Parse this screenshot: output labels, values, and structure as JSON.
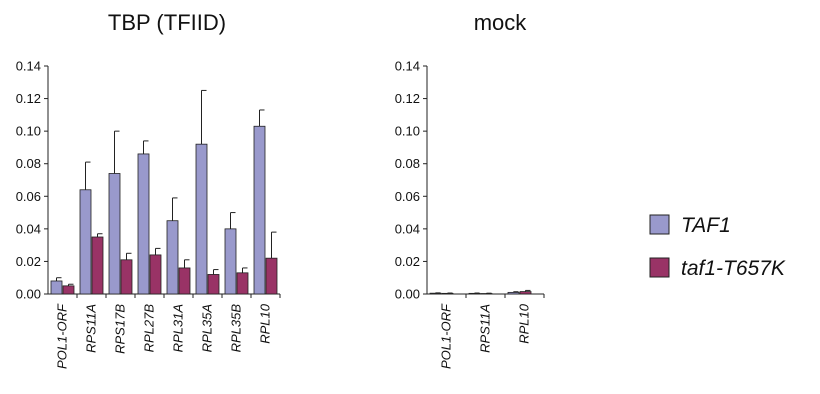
{
  "legend": {
    "items": [
      {
        "label": "TAF1",
        "color": "#9999CC"
      },
      {
        "label": "taf1-T657K",
        "color": "#993366"
      }
    ]
  },
  "chart_data": [
    {
      "type": "bar",
      "title": "TBP (TFIID)",
      "categories": [
        "POL1-ORF",
        "RPS11A",
        "RPS17B",
        "RPL27B",
        "RPL31A",
        "RPL35A",
        "RPL35B",
        "RPL10"
      ],
      "ylim": [
        0,
        0.14
      ],
      "yticks": [
        "0.00",
        "0.02",
        "0.04",
        "0.06",
        "0.08",
        "0.10",
        "0.12",
        "0.14"
      ],
      "series": [
        {
          "name": "TAF1",
          "color": "#9999CC",
          "values": [
            0.008,
            0.064,
            0.074,
            0.086,
            0.045,
            0.092,
            0.04,
            0.103
          ],
          "errors": [
            0.002,
            0.017,
            0.026,
            0.008,
            0.014,
            0.033,
            0.01,
            0.01
          ]
        },
        {
          "name": "taf1-T657K",
          "color": "#993366",
          "values": [
            0.005,
            0.035,
            0.021,
            0.024,
            0.016,
            0.012,
            0.013,
            0.022
          ],
          "errors": [
            0.001,
            0.002,
            0.004,
            0.004,
            0.005,
            0.003,
            0.003,
            0.016
          ]
        }
      ]
    },
    {
      "type": "bar",
      "title": "mock",
      "categories": [
        "POL1-ORF",
        "RPS11A",
        "RPL10"
      ],
      "ylim": [
        0,
        0.14
      ],
      "yticks": [
        "0.00",
        "0.02",
        "0.04",
        "0.06",
        "0.08",
        "0.10",
        "0.12",
        "0.14"
      ],
      "series": [
        {
          "name": "TAF1",
          "color": "#9999CC",
          "values": [
            0.0005,
            0.0004,
            0.001
          ],
          "errors": [
            0.0002,
            0.0002,
            0.0004
          ]
        },
        {
          "name": "taf1-T657K",
          "color": "#993366",
          "values": [
            0.0004,
            0.0003,
            0.0015
          ],
          "errors": [
            0.0002,
            0.0002,
            0.0007
          ]
        }
      ]
    }
  ]
}
